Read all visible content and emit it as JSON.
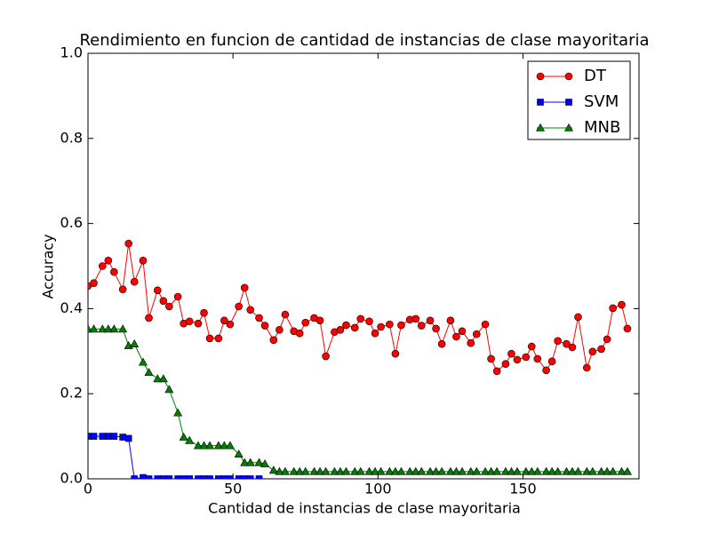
{
  "chart_data": {
    "type": "line",
    "title": "Rendimiento en funcion de cantidad de instancias de clase mayoritaria",
    "xlabel": "Cantidad de instancias de clase mayoritaria",
    "ylabel": "Accuracy",
    "xlim": [
      0,
      190
    ],
    "ylim": [
      0,
      1
    ],
    "xticks": [
      0,
      50,
      100,
      150
    ],
    "yticks": [
      {
        "value": 0,
        "label": "0.0"
      },
      {
        "value": 0.2,
        "label": "0.2"
      },
      {
        "value": 0.4,
        "label": "0.4"
      },
      {
        "value": 0.6,
        "label": "0.6"
      },
      {
        "value": 0.8,
        "label": "0.8"
      },
      {
        "value": 1,
        "label": "1.0"
      }
    ],
    "legend": "upper right",
    "x": [
      0,
      2,
      5,
      7,
      9,
      12,
      14,
      16,
      19,
      21,
      24,
      26,
      28,
      31,
      33,
      35,
      38,
      40,
      42,
      45,
      47,
      49,
      52,
      54,
      56,
      59,
      61,
      64,
      66,
      68,
      71,
      73,
      75,
      78,
      80,
      82,
      85,
      87,
      89,
      92,
      94,
      97,
      99,
      101,
      104,
      106,
      108,
      111,
      113,
      115,
      118,
      120,
      122,
      125,
      127,
      129,
      132,
      134,
      137,
      139,
      141,
      144,
      146,
      148,
      151,
      153,
      155,
      158,
      160,
      162,
      165,
      167,
      169,
      172,
      174,
      177,
      179,
      181,
      184,
      186
    ],
    "series": [
      {
        "name": "DT",
        "color": "#ff0000",
        "marker": "circle",
        "values": [
          0.453,
          0.46,
          0.5,
          0.513,
          0.486,
          0.445,
          0.553,
          0.463,
          0.513,
          0.378,
          0.443,
          0.418,
          0.405,
          0.428,
          0.365,
          0.37,
          0.365,
          0.39,
          0.33,
          0.33,
          0.372,
          0.363,
          0.405,
          0.449,
          0.397,
          0.378,
          0.36,
          0.326,
          0.35,
          0.386,
          0.347,
          0.342,
          0.367,
          0.378,
          0.372,
          0.288,
          0.345,
          0.35,
          0.361,
          0.355,
          0.376,
          0.37,
          0.342,
          0.357,
          0.363,
          0.294,
          0.361,
          0.374,
          0.376,
          0.36,
          0.372,
          0.353,
          0.317,
          0.372,
          0.334,
          0.347,
          0.319,
          0.34,
          0.363,
          0.282,
          0.253,
          0.27,
          0.294,
          0.28,
          0.286,
          0.311,
          0.282,
          0.255,
          0.276,
          0.324,
          0.317,
          0.309,
          0.38,
          0.261,
          0.299,
          0.305,
          0.328,
          0.401,
          0.409,
          0.353
        ]
      },
      {
        "name": "SVM",
        "color": "#0000ff",
        "marker": "square",
        "values": [
          0.1,
          0.1,
          0.1,
          0.1,
          0.1,
          0.098,
          0.095,
          0,
          0.003,
          0,
          0,
          0,
          0,
          0,
          0,
          0,
          0,
          0,
          0,
          0,
          0,
          0,
          0,
          0,
          0,
          0,
          null,
          null,
          null,
          null,
          null,
          null,
          null,
          null,
          null,
          null,
          null,
          null,
          null,
          null,
          null,
          null,
          null,
          null,
          null,
          null,
          null,
          null,
          null,
          null,
          null,
          null,
          null,
          null,
          null,
          null,
          null,
          null,
          null,
          null,
          null,
          null,
          null,
          null,
          null,
          null,
          null,
          null,
          null,
          null,
          null,
          null,
          null,
          null,
          null,
          null,
          null,
          null,
          null,
          null
        ]
      },
      {
        "name": "MNB",
        "color": "#008000",
        "marker": "triangle",
        "values": [
          0.352,
          0.352,
          0.352,
          0.352,
          0.352,
          0.352,
          0.313,
          0.317,
          0.274,
          0.25,
          0.235,
          0.235,
          0.21,
          0.155,
          0.098,
          0.09,
          0.078,
          0.078,
          0.078,
          0.078,
          0.078,
          0.078,
          0.058,
          0.038,
          0.038,
          0.038,
          0.035,
          0.02,
          0.017,
          0.017,
          0.017,
          0.017,
          0.017,
          0.017,
          0.017,
          0.017,
          0.017,
          0.017,
          0.017,
          0.017,
          0.017,
          0.017,
          0.017,
          0.017,
          0.017,
          0.017,
          0.017,
          0.017,
          0.017,
          0.017,
          0.017,
          0.017,
          0.017,
          0.017,
          0.017,
          0.017,
          0.017,
          0.017,
          0.017,
          0.017,
          0.017,
          0.017,
          0.017,
          0.017,
          0.017,
          0.017,
          0.017,
          0.017,
          0.017,
          0.017,
          0.017,
          0.017,
          0.017,
          0.017,
          0.017,
          0.017,
          0.017,
          0.017,
          0.017,
          0.017
        ]
      }
    ]
  }
}
